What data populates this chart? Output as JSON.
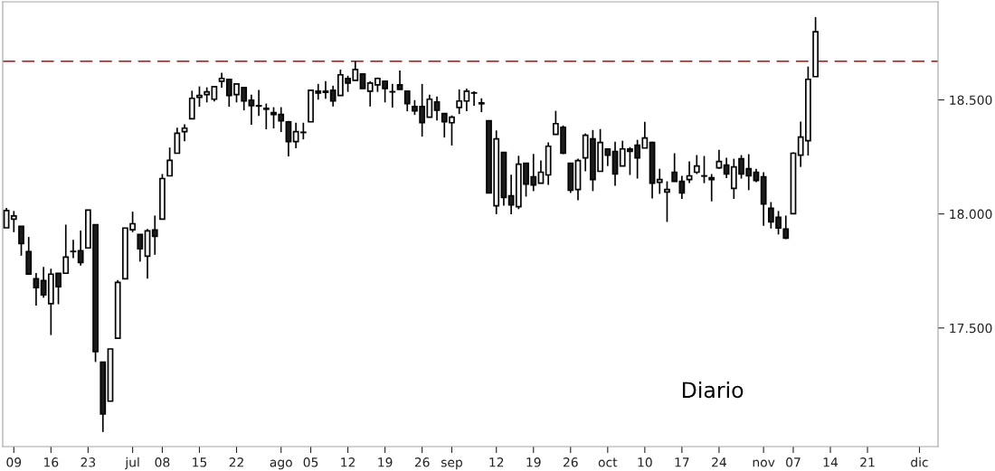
{
  "chart_data": {
    "type": "candlestick",
    "title": "Diario",
    "categories": [
      null,
      "09",
      null,
      null,
      null,
      null,
      "16",
      null,
      null,
      null,
      null,
      "23",
      null,
      null,
      null,
      null,
      null,
      "jul",
      null,
      null,
      null,
      "08",
      null,
      null,
      null,
      null,
      "15",
      null,
      null,
      null,
      null,
      "22",
      null,
      null,
      null,
      null,
      null,
      "ago",
      null,
      null,
      null,
      "05",
      null,
      null,
      null,
      null,
      "12",
      null,
      null,
      null,
      null,
      "19",
      null,
      null,
      null,
      null,
      "26",
      null,
      null,
      null,
      "sep",
      null,
      null,
      null,
      null,
      null,
      "12",
      null,
      null,
      null,
      null,
      "19",
      null,
      null,
      null,
      null,
      "26",
      null,
      null,
      null,
      null,
      "oct",
      null,
      null,
      null,
      null,
      "10",
      null,
      null,
      null,
      null,
      "17",
      null,
      null,
      null,
      null,
      "24",
      null,
      null,
      null,
      null,
      null,
      "nov",
      null,
      null,
      null,
      "07",
      null,
      null,
      null,
      null,
      "14",
      null,
      null,
      null,
      null,
      "21",
      null,
      null,
      null,
      null,
      null,
      null,
      "dic",
      null,
      null
    ],
    "ohlc": [
      [
        17939,
        18026,
        17939,
        18015
      ],
      [
        17977,
        18013,
        17920,
        17991
      ],
      [
        17946,
        17946,
        17817,
        17870
      ],
      [
        17835,
        17899,
        17736,
        17736
      ],
      [
        17716,
        17741,
        17598,
        17677
      ],
      [
        17708,
        17768,
        17633,
        17645
      ],
      [
        17607,
        17760,
        17469,
        17736
      ],
      [
        17740,
        17740,
        17604,
        17681
      ],
      [
        17740,
        17953,
        17740,
        17811
      ],
      [
        17835,
        17887,
        17806,
        17836
      ],
      [
        17839,
        17927,
        17774,
        17787
      ],
      [
        17851,
        18017,
        17851,
        18017
      ],
      [
        17953,
        17953,
        17351,
        17396
      ],
      [
        17350,
        17350,
        17044,
        17123
      ],
      [
        17179,
        17408,
        17179,
        17408
      ],
      [
        17455,
        17710,
        17455,
        17700
      ],
      [
        17716,
        17938,
        17716,
        17938
      ],
      [
        17931,
        18010,
        17920,
        17957
      ],
      [
        17910,
        17910,
        17791,
        17847
      ],
      [
        17815,
        17934,
        17716,
        17926
      ],
      [
        17930,
        17993,
        17821,
        17902
      ],
      [
        17977,
        18175,
        17977,
        18155
      ],
      [
        18167,
        18291,
        18167,
        18235
      ],
      [
        18266,
        18378,
        18266,
        18354
      ],
      [
        18361,
        18393,
        18319,
        18376
      ],
      [
        18417,
        18540,
        18417,
        18507
      ],
      [
        18511,
        18559,
        18470,
        18519
      ],
      [
        18523,
        18555,
        18489,
        18535
      ],
      [
        18503,
        18560,
        18493,
        18558
      ],
      [
        18582,
        18619,
        18553,
        18594
      ],
      [
        18590,
        18590,
        18470,
        18519
      ],
      [
        18523,
        18570,
        18489,
        18570
      ],
      [
        18554,
        18554,
        18454,
        18495
      ],
      [
        18499,
        18523,
        18391,
        18475
      ],
      [
        18475,
        18544,
        18430,
        18473
      ],
      [
        18463,
        18484,
        18371,
        18459
      ],
      [
        18444,
        18468,
        18375,
        18436
      ],
      [
        18436,
        18468,
        18359,
        18408
      ],
      [
        18404,
        18408,
        18252,
        18317
      ],
      [
        18317,
        18400,
        18288,
        18361
      ],
      [
        18357,
        18400,
        18327,
        18358
      ],
      [
        18404,
        18542,
        18404,
        18542
      ],
      [
        18538,
        18570,
        18501,
        18530
      ],
      [
        18538,
        18582,
        18505,
        18533
      ],
      [
        18542,
        18562,
        18471,
        18495
      ],
      [
        18519,
        18633,
        18519,
        18610
      ],
      [
        18594,
        18606,
        18535,
        18574
      ],
      [
        18586,
        18669,
        18586,
        18633
      ],
      [
        18614,
        18614,
        18550,
        18550
      ],
      [
        18538,
        18582,
        18471,
        18574
      ],
      [
        18566,
        18598,
        18535,
        18594
      ],
      [
        18582,
        18582,
        18489,
        18550
      ],
      [
        18536,
        18570,
        18466,
        18535
      ],
      [
        18566,
        18629,
        18546,
        18546
      ],
      [
        18538,
        18538,
        18450,
        18483
      ],
      [
        18471,
        18499,
        18434,
        18452
      ],
      [
        18471,
        18570,
        18339,
        18400
      ],
      [
        18424,
        18523,
        18424,
        18503
      ],
      [
        18491,
        18515,
        18410,
        18455
      ],
      [
        18440,
        18440,
        18335,
        18404
      ],
      [
        18400,
        18432,
        18300,
        18424
      ],
      [
        18467,
        18546,
        18438,
        18495
      ],
      [
        18495,
        18550,
        18450,
        18538
      ],
      [
        18530,
        18538,
        18474,
        18531
      ],
      [
        18487,
        18507,
        18446,
        18483
      ],
      [
        18408,
        18408,
        18092,
        18092
      ],
      [
        18036,
        18366,
        17999,
        18329
      ],
      [
        18270,
        18270,
        18036,
        18072
      ],
      [
        18080,
        18172,
        17999,
        18040
      ],
      [
        18032,
        18255,
        18021,
        18218
      ],
      [
        18222,
        18222,
        18076,
        18131
      ],
      [
        18163,
        18263,
        18100,
        18127
      ],
      [
        18135,
        18234,
        18135,
        18183
      ],
      [
        18171,
        18314,
        18127,
        18297
      ],
      [
        18349,
        18452,
        18349,
        18396
      ],
      [
        18380,
        18388,
        18262,
        18266
      ],
      [
        18222,
        18222,
        18092,
        18104
      ],
      [
        18107,
        18242,
        18060,
        18234
      ],
      [
        18246,
        18353,
        18187,
        18345
      ],
      [
        18329,
        18368,
        18100,
        18151
      ],
      [
        18187,
        18372,
        18187,
        18313
      ],
      [
        18285,
        18285,
        18210,
        18258
      ],
      [
        18274,
        18317,
        18123,
        18175
      ],
      [
        18210,
        18321,
        18210,
        18285
      ],
      [
        18285,
        18293,
        18171,
        18274
      ],
      [
        18301,
        18325,
        18155,
        18246
      ],
      [
        18289,
        18404,
        18289,
        18333
      ],
      [
        18313,
        18317,
        18068,
        18135
      ],
      [
        18139,
        18198,
        18088,
        18151
      ],
      [
        18096,
        18143,
        17965,
        18107
      ],
      [
        18183,
        18266,
        18143,
        18143
      ],
      [
        18143,
        18167,
        18066,
        18092
      ],
      [
        18151,
        18230,
        18135,
        18167
      ],
      [
        18183,
        18258,
        18175,
        18210
      ],
      [
        18167,
        18254,
        18135,
        18166
      ],
      [
        18159,
        18175,
        18055,
        18151
      ],
      [
        18202,
        18281,
        18198,
        18230
      ],
      [
        18214,
        18246,
        18157,
        18175
      ],
      [
        18112,
        18242,
        18066,
        18206
      ],
      [
        18242,
        18258,
        18155,
        18175
      ],
      [
        18198,
        18262,
        18104,
        18167
      ],
      [
        18183,
        18198,
        18139,
        18147
      ],
      [
        18163,
        18183,
        17948,
        18044
      ],
      [
        18025,
        18052,
        17936,
        17965
      ],
      [
        17985,
        18013,
        17910,
        17938
      ],
      [
        17934,
        17993,
        17890,
        17894
      ],
      [
        18001,
        18270,
        18001,
        18266
      ],
      [
        18258,
        18405,
        18206,
        18337
      ],
      [
        18321,
        18646,
        18256,
        18590
      ],
      [
        18602,
        18863,
        18602,
        18799
      ],
      null,
      null,
      null,
      null,
      null,
      null,
      null,
      null,
      null,
      null,
      null,
      null,
      null,
      null,
      null,
      null
    ],
    "ylim": [
      16980,
      18930
    ],
    "yticks": [
      {
        "value": 17500,
        "label": "17.500"
      },
      {
        "value": 18000,
        "label": "18.000"
      },
      {
        "value": 18500,
        "label": "18.500"
      }
    ],
    "ref_lines": [
      {
        "axis": "y",
        "value": 18669,
        "color": "#cc0000",
        "line_style": "dashed"
      }
    ],
    "grid": false,
    "legend": false
  }
}
